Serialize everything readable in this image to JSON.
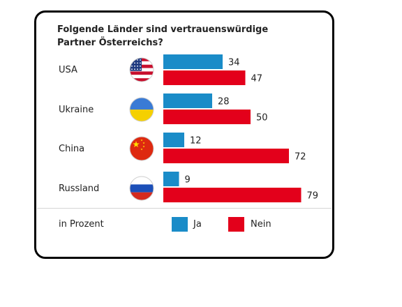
{
  "chart_data": {
    "type": "bar",
    "orientation": "horizontal",
    "title": "Folgende Länder sind vertrauenswürdige Partner Österreichs?",
    "categories": [
      "USA",
      "Ukraine",
      "China",
      "Russland"
    ],
    "flag_icons": [
      "usa-flag-icon",
      "ukraine-flag-icon",
      "china-flag-icon",
      "russia-flag-icon"
    ],
    "series": [
      {
        "name": "Ja",
        "color": "#1a8cc8",
        "values": [
          34,
          28,
          12,
          9
        ]
      },
      {
        "name": "Nein",
        "color": "#e3001b",
        "values": [
          47,
          50,
          72,
          79
        ]
      }
    ],
    "unit_note": "in Prozent",
    "xlim": [
      0,
      100
    ],
    "grid": false,
    "legend_position": "bottom"
  }
}
